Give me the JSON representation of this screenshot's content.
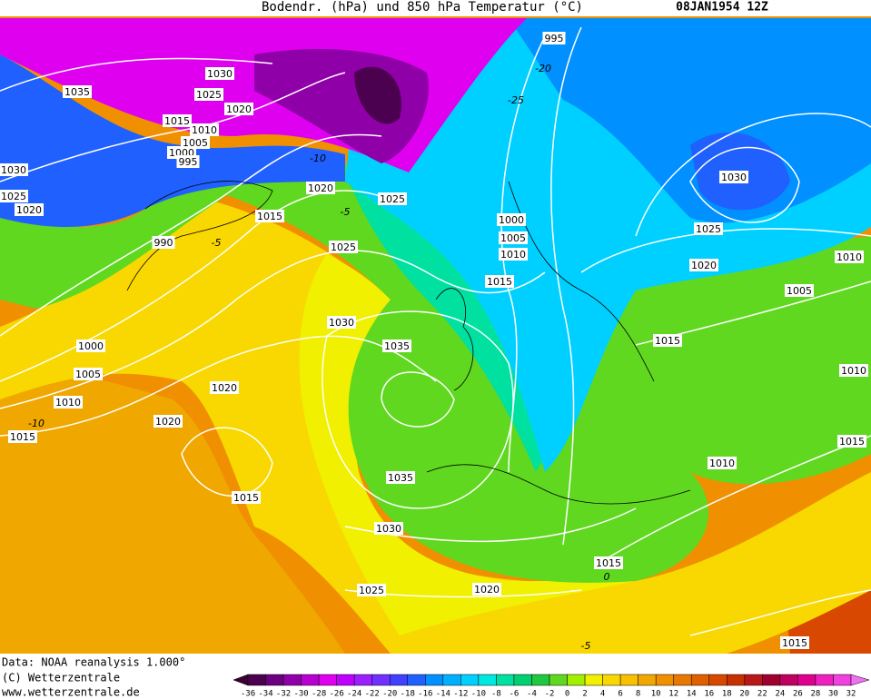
{
  "header": {
    "title": "Bodendr. (hPa) und 850 hPa Temperatur (°C)",
    "date": "08JAN1954 12Z"
  },
  "isobar_labels": [
    "1035",
    "1030",
    "1025",
    "1020",
    "1015",
    "1010",
    "1005",
    "1000",
    "995",
    "1030",
    "1025",
    "1020",
    "990",
    "1020",
    "1015",
    "1025",
    "1025",
    "1000",
    "1005",
    "1010",
    "1015",
    "995",
    "1030",
    "1025",
    "1020",
    "1010",
    "1005",
    "1015",
    "1010",
    "1030",
    "1035",
    "1000",
    "1005",
    "1010",
    "1020",
    "1020",
    "1015",
    "1015",
    "1035",
    "1030",
    "1025",
    "1020",
    "1015",
    "1010",
    "1015",
    "1015"
  ],
  "temperature_labels": [
    "-20",
    "-25",
    "-10",
    "-5",
    "-5",
    "-5",
    "0",
    "-10"
  ],
  "footer": {
    "lines": [
      "Data: NOAA reanalysis 1.000°",
      "(C) Wetterzentrale",
      "www.wetterzentrale.de"
    ]
  },
  "legend": {
    "labels": [
      -36,
      -34,
      -32,
      -30,
      -28,
      -26,
      -24,
      -22,
      -20,
      -18,
      -16,
      -14,
      -12,
      -10,
      -8,
      -6,
      -4,
      -2,
      0,
      2,
      4,
      6,
      8,
      10,
      12,
      14,
      16,
      18,
      20,
      22,
      24,
      26,
      28,
      30,
      32
    ],
    "colors": [
      "#3a0030",
      "#4b0050",
      "#6a0080",
      "#9000a8",
      "#b800d0",
      "#e000f0",
      "#c000ff",
      "#9a20ff",
      "#7030ff",
      "#4040ff",
      "#2060ff",
      "#0090ff",
      "#00b0ff",
      "#00d0ff",
      "#00e8e0",
      "#00e0a0",
      "#00d070",
      "#20c840",
      "#60d820",
      "#a0f000",
      "#f0f000",
      "#f8d800",
      "#f8c000",
      "#f0a800",
      "#f09000",
      "#e87800",
      "#e06000",
      "#d84800",
      "#c83000",
      "#b81818",
      "#a00030",
      "#c00060",
      "#e00090",
      "#f020c0",
      "#f040e0",
      "#f070f0"
    ]
  }
}
